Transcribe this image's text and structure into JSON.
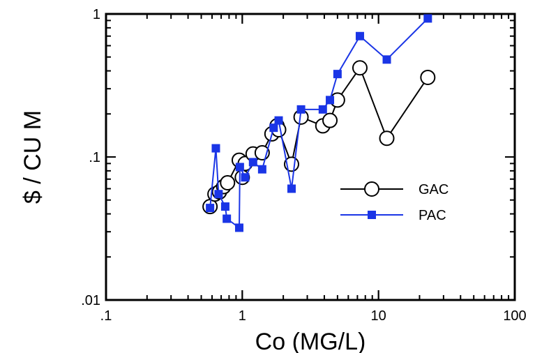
{
  "chart_data": {
    "type": "scatter",
    "title": "",
    "xlabel": "Co (MG/L)",
    "ylabel": "$ / CU M",
    "xscale": "log",
    "yscale": "log",
    "xlim": [
      0.1,
      100
    ],
    "ylim": [
      0.01,
      1
    ],
    "grid": false,
    "legend_position": "center-right",
    "x_tick_labels": [
      ".1",
      "1",
      "10",
      "100"
    ],
    "y_tick_labels": [
      ".01",
      ".1",
      "1"
    ],
    "series": [
      {
        "name": "GAC",
        "marker": "open-circle",
        "color": "#000000",
        "x": [
          0.58,
          0.63,
          0.68,
          0.73,
          0.78,
          0.95,
          1.0,
          1.05,
          1.2,
          1.4,
          1.65,
          1.8,
          1.85,
          2.3,
          2.7,
          3.9,
          4.4,
          5.0,
          7.3,
          11.5,
          23.0
        ],
        "y": [
          0.045,
          0.055,
          0.057,
          0.062,
          0.066,
          0.095,
          0.072,
          0.09,
          0.105,
          0.107,
          0.145,
          0.165,
          0.155,
          0.089,
          0.19,
          0.165,
          0.18,
          0.25,
          0.42,
          0.135,
          0.36
        ]
      },
      {
        "name": "PAC",
        "marker": "filled-square",
        "color": "#1a35e6",
        "x": [
          0.58,
          0.64,
          0.67,
          0.75,
          0.77,
          0.95,
          0.96,
          1.05,
          1.2,
          1.4,
          1.7,
          1.85,
          2.3,
          2.7,
          3.9,
          4.4,
          5.0,
          7.3,
          11.5,
          23.0
        ],
        "y": [
          0.044,
          0.115,
          0.055,
          0.045,
          0.037,
          0.032,
          0.085,
          0.072,
          0.092,
          0.082,
          0.16,
          0.18,
          0.06,
          0.215,
          0.215,
          0.25,
          0.38,
          0.7,
          0.48,
          0.93
        ]
      }
    ]
  }
}
